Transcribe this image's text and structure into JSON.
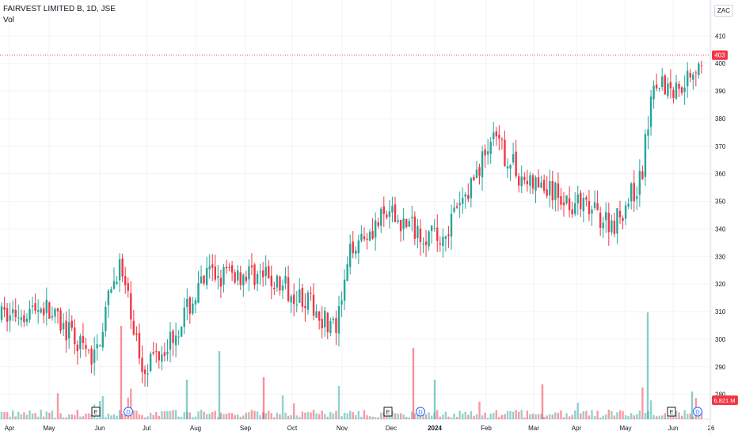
{
  "header": {
    "title": "FAIRVEST LIMITED B, 1D, JSE",
    "volume_label": "Vol",
    "currency": "ZAC"
  },
  "price_badge": {
    "value": "403",
    "color": "#f23645"
  },
  "volume_badge": {
    "value": "6.821 M",
    "color": "#f23645"
  },
  "colors": {
    "up": "#26a69a",
    "down": "#f23645",
    "grid": "#f0f3fa",
    "axis_text": "#131722"
  },
  "markers": [
    {
      "label": "E",
      "kind": "earnings",
      "month": "Jun"
    },
    {
      "label": "D",
      "kind": "dividend",
      "month": "Jun"
    },
    {
      "label": "E",
      "kind": "earnings",
      "month": "Dec"
    },
    {
      "label": "D",
      "kind": "dividend",
      "month": "Dec"
    },
    {
      "label": "E",
      "kind": "earnings",
      "month": "Jun"
    },
    {
      "label": "D",
      "kind": "dividend",
      "month": "Jun"
    }
  ],
  "chart_data": {
    "type": "candlestick",
    "title": "FAIRVEST LIMITED B, 1D, JSE",
    "y_ticks": [
      280,
      290,
      300,
      310,
      320,
      330,
      340,
      350,
      360,
      370,
      380,
      390,
      400,
      410
    ],
    "x_ticks": [
      "Apr",
      "May",
      "Jun",
      "Jul",
      "Aug",
      "Sep",
      "Oct",
      "Nov",
      "Dec",
      "2024",
      "Feb",
      "Mar",
      "Apr",
      "May",
      "Jun",
      "26"
    ],
    "last_price": 403,
    "last_volume": "6.821 M",
    "price_anchors": [
      [
        "Apr",
        308
      ],
      [
        "May",
        312
      ],
      [
        "Jun",
        292
      ],
      [
        "Jun",
        328
      ],
      [
        "Jul",
        290
      ],
      [
        "Aug",
        300
      ],
      [
        "Aug",
        323
      ],
      [
        "Sep",
        324
      ],
      [
        "Oct",
        316
      ],
      [
        "Nov",
        303
      ],
      [
        "Nov",
        335
      ],
      [
        "Dec",
        345
      ],
      [
        "Dec",
        336
      ],
      [
        "2024",
        350
      ],
      [
        "Feb",
        372
      ],
      [
        "Feb",
        370
      ],
      [
        "Mar",
        358
      ],
      [
        "Apr",
        348
      ],
      [
        "Apr",
        342
      ],
      [
        "May",
        358
      ],
      [
        "May",
        396
      ],
      [
        "Jun",
        390
      ],
      [
        "Jun",
        404
      ]
    ],
    "grid": true,
    "legend": "top-left"
  }
}
